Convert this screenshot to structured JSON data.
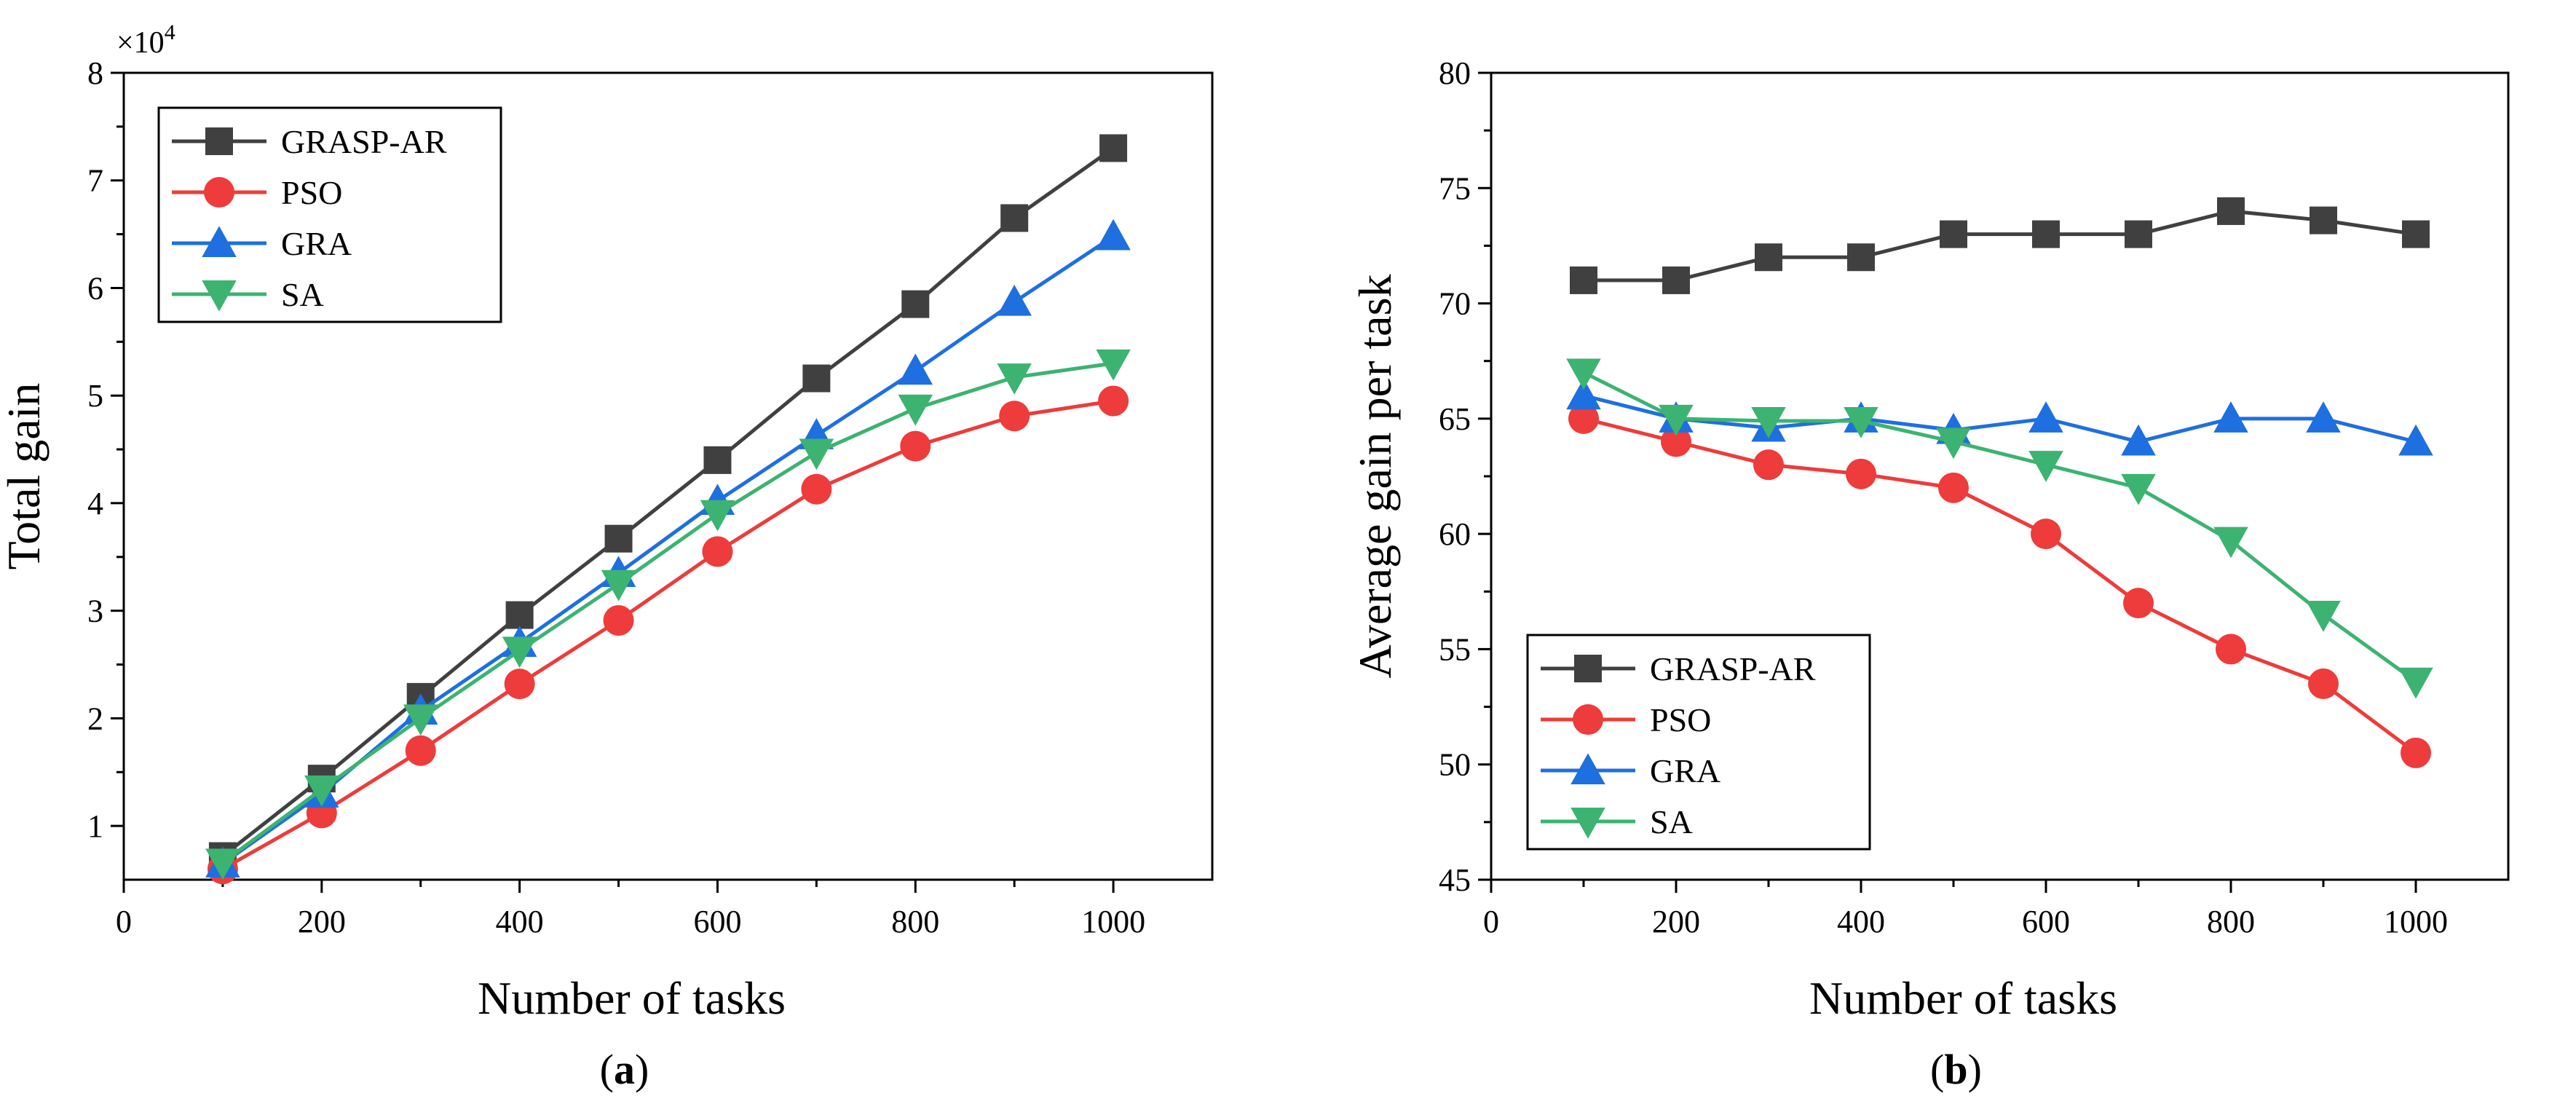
{
  "chart_data": [
    {
      "id": "a",
      "type": "line",
      "panel_label": "a",
      "xlabel": "Number of tasks",
      "ylabel": "Total gain",
      "multiplier_label": "×10",
      "multiplier_exponent": "4",
      "xlim": [
        0,
        1100
      ],
      "ylim": [
        0.5,
        8
      ],
      "x_ticks": [
        0,
        200,
        400,
        600,
        800,
        1000
      ],
      "y_ticks": [
        1,
        2,
        3,
        4,
        5,
        6,
        7,
        8
      ],
      "x_tick_labels": [
        "0",
        "200",
        "400",
        "600",
        "800",
        "1000"
      ],
      "y_tick_labels": [
        "1",
        "2",
        "3",
        "4",
        "5",
        "6",
        "7",
        "8"
      ],
      "legend_position": "top-left",
      "x": [
        100,
        200,
        300,
        400,
        500,
        600,
        700,
        800,
        900,
        1000
      ],
      "series": [
        {
          "name": "GRASP-AR",
          "color": "#404040",
          "marker": "square",
          "values": [
            0.72,
            1.44,
            2.2,
            2.96,
            3.67,
            4.4,
            5.16,
            5.85,
            6.65,
            7.3
          ]
        },
        {
          "name": "PSO",
          "color": "#ee3b3b",
          "marker": "circle",
          "values": [
            0.6,
            1.12,
            1.7,
            2.32,
            2.91,
            3.55,
            4.13,
            4.53,
            4.81,
            4.95
          ]
        },
        {
          "name": "GRA",
          "color": "#1e6fe0",
          "marker": "triangle-up",
          "values": [
            0.65,
            1.3,
            2.07,
            2.7,
            3.35,
            4.02,
            4.63,
            5.23,
            5.87,
            6.48
          ]
        },
        {
          "name": "SA",
          "color": "#3cb371",
          "marker": "triangle-down",
          "values": [
            0.66,
            1.34,
            2.0,
            2.63,
            3.25,
            3.9,
            4.47,
            4.88,
            5.17,
            5.3
          ]
        }
      ]
    },
    {
      "id": "b",
      "type": "line",
      "panel_label": "b",
      "xlabel": "Number of tasks",
      "ylabel": "Average gain per task",
      "xlim": [
        0,
        1100
      ],
      "ylim": [
        45,
        80
      ],
      "x_ticks": [
        0,
        200,
        400,
        600,
        800,
        1000
      ],
      "y_ticks": [
        45,
        50,
        55,
        60,
        65,
        70,
        75,
        80
      ],
      "x_tick_labels": [
        "0",
        "200",
        "400",
        "600",
        "800",
        "1000"
      ],
      "y_tick_labels": [
        "45",
        "50",
        "55",
        "60",
        "65",
        "70",
        "75",
        "80"
      ],
      "legend_position": "bottom-left",
      "x": [
        100,
        200,
        300,
        400,
        500,
        600,
        700,
        800,
        900,
        1000
      ],
      "series": [
        {
          "name": "GRASP-AR",
          "color": "#404040",
          "marker": "square",
          "values": [
            71,
            71,
            72,
            72,
            73,
            73,
            73,
            74,
            73.6,
            73
          ]
        },
        {
          "name": "PSO",
          "color": "#ee3b3b",
          "marker": "circle",
          "values": [
            65,
            64,
            63,
            62.6,
            62,
            60,
            57,
            55,
            53.5,
            50.5
          ]
        },
        {
          "name": "GRA",
          "color": "#1e6fe0",
          "marker": "triangle-up",
          "values": [
            66,
            65,
            64.6,
            65,
            64.5,
            65,
            64,
            65,
            65,
            64
          ]
        },
        {
          "name": "SA",
          "color": "#3cb371",
          "marker": "triangle-down",
          "values": [
            67,
            65,
            64.9,
            64.9,
            64,
            63,
            62,
            59.7,
            56.5,
            53.6
          ]
        }
      ]
    }
  ]
}
